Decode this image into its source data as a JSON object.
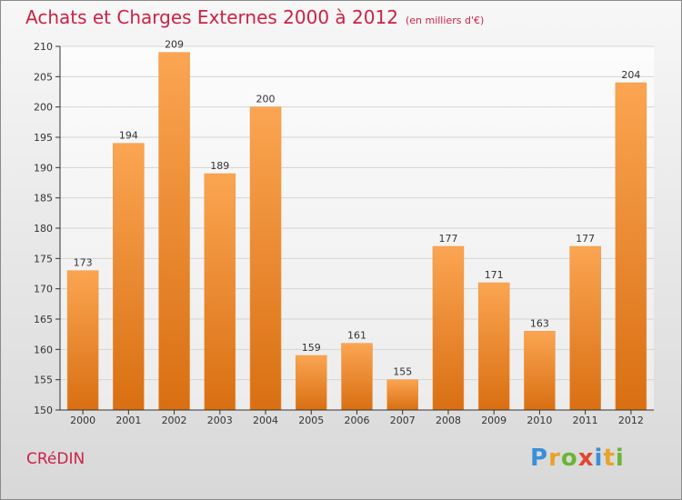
{
  "header": {
    "title": "Achats et Charges Externes 2000 à 2012",
    "subtitle": "(en milliers d'€)"
  },
  "footer": {
    "commune": "CRéDIN",
    "brand_letters": [
      "P",
      "r",
      "o",
      "x",
      "i",
      "t",
      "i"
    ],
    "brand_colors": [
      "#3a8fd9",
      "#e8a32a",
      "#6ab533",
      "#e2462f",
      "#3a8fd9",
      "#e8a32a",
      "#6ab533"
    ]
  },
  "colors": {
    "bar": "#f08a2c",
    "title": "#cc2244",
    "axis": "#333333"
  },
  "chart_data": {
    "type": "bar",
    "categories": [
      "2000",
      "2001",
      "2002",
      "2003",
      "2004",
      "2005",
      "2006",
      "2007",
      "2008",
      "2009",
      "2010",
      "2011",
      "2012"
    ],
    "values": [
      173,
      194,
      209,
      189,
      200,
      159,
      161,
      155,
      177,
      171,
      163,
      177,
      204
    ],
    "data_labels": [
      "173",
      "194",
      "209",
      "189",
      "200",
      "159",
      "161",
      "155",
      "177",
      "171",
      "163",
      "177",
      "204"
    ],
    "title": "Achats et Charges Externes 2000 à 2012",
    "subtitle": "(en milliers d'€)",
    "ylim": [
      150,
      210
    ],
    "yticks": [
      150,
      155,
      160,
      165,
      170,
      175,
      180,
      185,
      190,
      195,
      200,
      205,
      210
    ],
    "grid": true
  }
}
